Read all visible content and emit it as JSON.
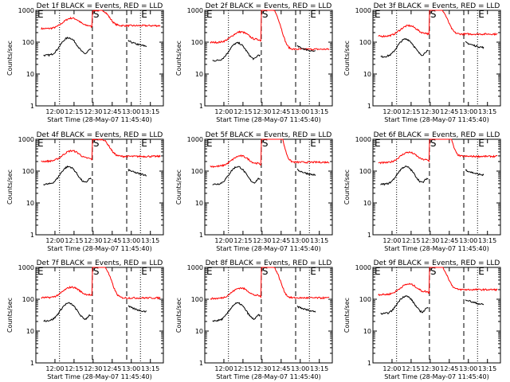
{
  "chart_data": {
    "type": "line",
    "layout": "3x3 grid",
    "y_scale": "log",
    "ylim": [
      1,
      1000
    ],
    "y_ticks": [
      1,
      10,
      100,
      1000
    ],
    "y_tick_labels": [
      "1",
      "10",
      "100",
      "1000"
    ],
    "xlim": [
      11.75,
      13.42
    ],
    "x_ticks": [
      12.0,
      12.25,
      12.5,
      12.75,
      13.0,
      13.25
    ],
    "x_tick_labels": [
      "12:00",
      "12:15",
      "12:30",
      "12:45",
      "13:00",
      "13:15"
    ],
    "ylabel": "Counts/sec",
    "xlabel": "Start Time (28-May-07 11:45:40)",
    "event_markers": [
      {
        "label": "E",
        "x": 11.76,
        "style": "none"
      },
      {
        "label": "",
        "x": 12.06,
        "style": "dotted"
      },
      {
        "label": "S",
        "x": 12.49,
        "style": "dashed"
      },
      {
        "label": "",
        "x": 12.94,
        "style": "dashed"
      },
      {
        "label": "E",
        "x": 13.12,
        "style": "dotted"
      }
    ],
    "series_colors": {
      "events": "#000000",
      "lld": "#ff0000"
    },
    "panels": [
      {
        "title": "Det 1f BLACK = Events, RED = LLD",
        "red_base": 380,
        "black_base": 110,
        "peak": 1000,
        "red_end": 330
      },
      {
        "title": "Det 2f BLACK = Events, RED = LLD",
        "red_base": 140,
        "black_base": 75,
        "peak": 1200,
        "red_end": 60
      },
      {
        "title": "Det 3f BLACK = Events, RED = LLD",
        "red_base": 220,
        "black_base": 100,
        "peak": 1200,
        "red_end": 180
      },
      {
        "title": "Det 4f BLACK = Events, RED = LLD",
        "red_base": 290,
        "black_base": 110,
        "peak": 1000,
        "red_end": 290
      },
      {
        "title": "Det 5f BLACK = Events, RED = LLD",
        "red_base": 200,
        "black_base": 110,
        "peak": 7000,
        "red_end": 190
      },
      {
        "title": "Det 6f BLACK = Events, RED = LLD",
        "red_base": 260,
        "black_base": 110,
        "peak": 8000,
        "red_end": 290
      },
      {
        "title": "Det 7f BLACK = Events, RED = LLD",
        "red_base": 160,
        "black_base": 60,
        "peak": 1200,
        "red_end": 110
      },
      {
        "title": "Det 8f BLACK = Events, RED = LLD",
        "red_base": 150,
        "black_base": 60,
        "peak": 1200,
        "red_end": 110
      },
      {
        "title": "Det 9f BLACK = Events, RED = LLD",
        "red_base": 200,
        "black_base": 100,
        "peak": 1200,
        "red_end": 200
      }
    ]
  }
}
